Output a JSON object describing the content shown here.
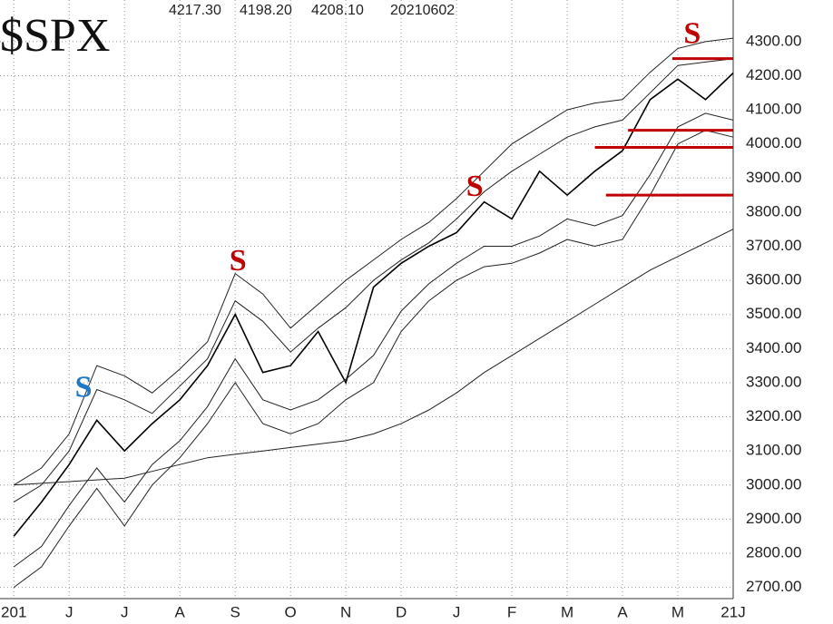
{
  "chart_data": {
    "type": "line",
    "title": "$SPX",
    "header_values": [
      "4217.30",
      "4198.20",
      "4208.10",
      "20210602"
    ],
    "x": [
      0,
      0.5,
      1,
      1.5,
      2,
      2.5,
      3,
      3.5,
      4,
      4.5,
      5,
      5.5,
      6,
      6.5,
      7,
      7.5,
      8,
      8.5,
      9,
      9.5,
      10,
      10.5,
      11,
      11.5,
      12,
      12.5,
      13
    ],
    "xlim": [
      -0.25,
      13
    ],
    "xticks": [
      {
        "value": 0,
        "label": "201"
      },
      {
        "value": 1,
        "label": "J"
      },
      {
        "value": 2,
        "label": "J"
      },
      {
        "value": 3,
        "label": "A"
      },
      {
        "value": 4,
        "label": "S"
      },
      {
        "value": 5,
        "label": "O"
      },
      {
        "value": 6,
        "label": "N"
      },
      {
        "value": 7,
        "label": "D"
      },
      {
        "value": 8,
        "label": "J"
      },
      {
        "value": 9,
        "label": "F"
      },
      {
        "value": 10,
        "label": "M"
      },
      {
        "value": 11,
        "label": "A"
      },
      {
        "value": 12,
        "label": "M"
      },
      {
        "value": 13,
        "label": "21J"
      }
    ],
    "ylim": [
      2667,
      4422
    ],
    "yticks": [
      {
        "value": 2700,
        "label": "2700.00"
      },
      {
        "value": 2800,
        "label": "2800.00"
      },
      {
        "value": 2900,
        "label": "2900.00"
      },
      {
        "value": 3000,
        "label": "3000.00"
      },
      {
        "value": 3100,
        "label": "3100.00"
      },
      {
        "value": 3200,
        "label": "3200.00"
      },
      {
        "value": 3300,
        "label": "3300.00"
      },
      {
        "value": 3400,
        "label": "3400.00"
      },
      {
        "value": 3500,
        "label": "3500.00"
      },
      {
        "value": 3600,
        "label": "3600.00"
      },
      {
        "value": 3700,
        "label": "3700.00"
      },
      {
        "value": 3800,
        "label": "3800.00"
      },
      {
        "value": 3900,
        "label": "3900.00"
      },
      {
        "value": 4000,
        "label": "4000.00"
      },
      {
        "value": 4100,
        "label": "4100.00"
      },
      {
        "value": 4200,
        "label": "4200.00"
      },
      {
        "value": 4300,
        "label": "4300.00"
      }
    ],
    "grid": true,
    "series": [
      {
        "color": "#000000",
        "width": 1.6,
        "values": [
          2850,
          2950,
          3060,
          3190,
          3100,
          3180,
          3250,
          3350,
          3500,
          3330,
          3350,
          3450,
          3300,
          3580,
          3650,
          3700,
          3740,
          3830,
          3780,
          3920,
          3850,
          3920,
          3980,
          4130,
          4190,
          4130,
          4208
        ]
      },
      {
        "color": "#222222",
        "width": 1,
        "values": [
          3000,
          3050,
          3150,
          3350,
          3320,
          3270,
          3340,
          3420,
          3620,
          3560,
          3460,
          3530,
          3600,
          3660,
          3720,
          3770,
          3840,
          3920,
          4000,
          4050,
          4100,
          4120,
          4130,
          4210,
          4280,
          4300,
          4310
        ]
      },
      {
        "color": "#222222",
        "width": 1,
        "values": [
          2950,
          3000,
          3100,
          3280,
          3250,
          3210,
          3290,
          3370,
          3540,
          3480,
          3390,
          3460,
          3520,
          3600,
          3660,
          3710,
          3780,
          3860,
          3920,
          3970,
          4020,
          4050,
          4070,
          4150,
          4230,
          4240,
          4250
        ]
      },
      {
        "color": "#222222",
        "width": 1,
        "values": [
          2760,
          2820,
          2940,
          3050,
          2950,
          3060,
          3130,
          3230,
          3370,
          3250,
          3220,
          3250,
          3310,
          3380,
          3510,
          3590,
          3650,
          3700,
          3700,
          3730,
          3780,
          3760,
          3790,
          3910,
          4050,
          4090,
          4070
        ]
      },
      {
        "color": "#222222",
        "width": 1,
        "values": [
          2700,
          2760,
          2880,
          2990,
          2880,
          3000,
          3080,
          3180,
          3300,
          3180,
          3150,
          3180,
          3250,
          3300,
          3450,
          3540,
          3600,
          3640,
          3650,
          3680,
          3720,
          3700,
          3720,
          3850,
          4000,
          4040,
          4020
        ]
      },
      {
        "color": "#222222",
        "width": 1,
        "values": [
          3000,
          3005,
          3010,
          3015,
          3020,
          3040,
          3060,
          3080,
          3090,
          3100,
          3110,
          3120,
          3130,
          3150,
          3180,
          3220,
          3270,
          3330,
          3380,
          3430,
          3480,
          3530,
          3580,
          3630,
          3670,
          3710,
          3750
        ]
      }
    ],
    "reference_lines": [
      {
        "y": 4250,
        "x": [
          11.9,
          13
        ],
        "color": "#c00000"
      },
      {
        "y": 4040,
        "x": [
          11.1,
          13
        ],
        "color": "#c00000"
      },
      {
        "y": 3990,
        "x": [
          10.5,
          13
        ],
        "color": "#c00000"
      },
      {
        "y": 3850,
        "x": [
          10.7,
          13
        ],
        "color": "#c00000"
      }
    ],
    "annotations": [
      {
        "text": "S",
        "x": 1.26,
        "y": 3279,
        "color": "#1f78c8"
      },
      {
        "text": "S",
        "x": 4.05,
        "y": 3650,
        "color": "#c00000"
      },
      {
        "text": "S",
        "x": 8.33,
        "y": 3869,
        "color": "#c00000"
      },
      {
        "text": "S",
        "x": 12.26,
        "y": 4316,
        "color": "#c00000"
      }
    ]
  }
}
